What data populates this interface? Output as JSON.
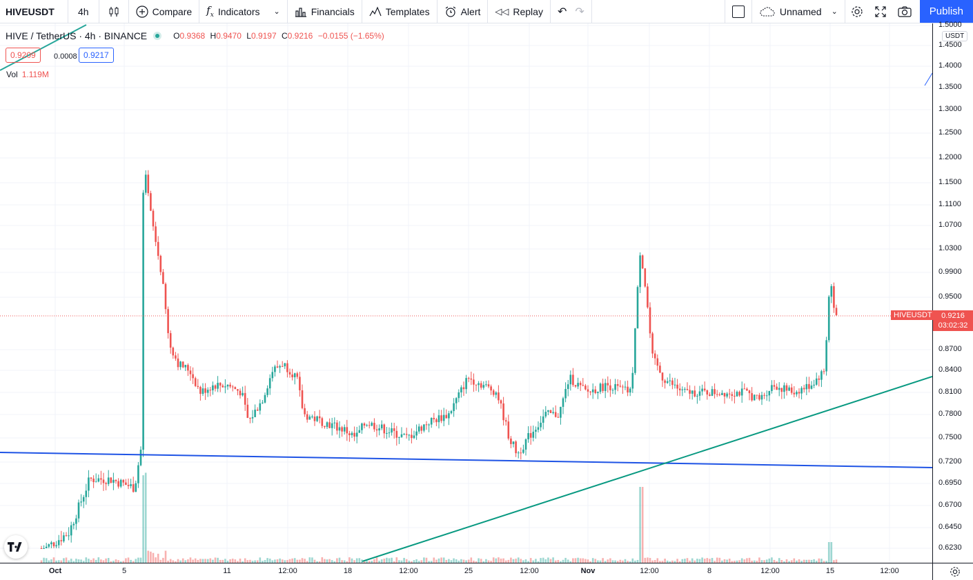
{
  "toolbar": {
    "symbol": "HIVEUSDT",
    "interval": "4h",
    "compare": "Compare",
    "indicators": "Indicators",
    "financials": "Financials",
    "templates": "Templates",
    "alert": "Alert",
    "replay": "Replay",
    "layout_name": "Unnamed",
    "publish": "Publish"
  },
  "legend": {
    "title": "HIVE / TetherUS · 4h · BINANCE",
    "o_label": "O",
    "o": "0.9368",
    "h_label": "H",
    "h": "0.9470",
    "l_label": "L",
    "l": "0.9197",
    "c_label": "C",
    "c": "0.9216",
    "change": "−0.0155 (−1.65%)",
    "bid": "0.9209",
    "spread": "0.0008",
    "ask": "0.9217",
    "vol_label": "Vol",
    "vol_value": "1.119M"
  },
  "price_axis": {
    "currency": "USDT",
    "labels": [
      "1.5000",
      "1.4500",
      "1.4000",
      "1.3500",
      "1.3000",
      "1.2500",
      "1.2000",
      "1.1500",
      "1.1100",
      "1.0700",
      "1.0300",
      "0.9900",
      "0.9500",
      "0.8700",
      "0.8400",
      "0.8100",
      "0.7800",
      "0.7500",
      "0.7200",
      "0.6950",
      "0.6700",
      "0.6450",
      "0.6230"
    ],
    "last_symbol": "HIVEUSDT",
    "last_price": "0.9216",
    "countdown": "03:02:32"
  },
  "time_axis": {
    "labels": [
      "Oct",
      "5",
      "11",
      "12:00",
      "18",
      "12:00",
      "25",
      "12:00",
      "Nov",
      "12:00",
      "8",
      "12:00",
      "15",
      "12:00"
    ]
  },
  "colors": {
    "up": "#26a69a",
    "down": "#ef5350",
    "accent": "#2962ff",
    "trend_teal": "#089981",
    "trend_blue": "#2962ff"
  },
  "chart_data": {
    "type": "candlestick",
    "symbol": "HIVEUSDT",
    "interval": "4h",
    "last": 0.9216,
    "trendlines": [
      {
        "color": "#1e53e5",
        "from": {
          "x": "2021-09-27",
          "y": 0.728
        },
        "to": {
          "x": "2021-11-16",
          "y": 0.713
        }
      },
      {
        "color": "#089981",
        "from": {
          "x": "2021-10-19",
          "y": 0.62
        },
        "to": {
          "x": "2021-11-16",
          "y": 0.828
        }
      }
    ]
  }
}
